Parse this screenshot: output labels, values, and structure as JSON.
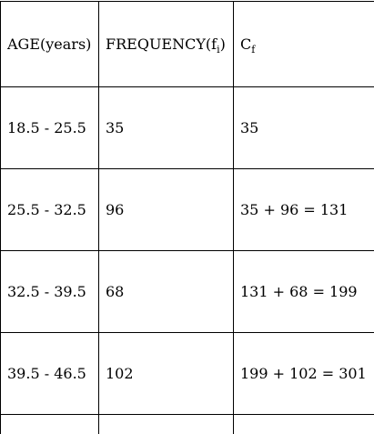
{
  "table": {
    "headers": {
      "age": "AGE(years)",
      "frequency_main": "FREQUENCY(f",
      "frequency_sub": "i",
      "frequency_close": ")",
      "cf_main": "C",
      "cf_sub": "f"
    },
    "rows": [
      {
        "age": "18.5 - 25.5",
        "frequency": "35",
        "cf": "35"
      },
      {
        "age": "25.5 - 32.5",
        "frequency": "96",
        "cf": "35 + 96 = 131"
      },
      {
        "age": "32.5 - 39.5",
        "frequency": "68",
        "cf": "131 + 68 = 199"
      },
      {
        "age": "39.5 - 46.5",
        "frequency": "102",
        "cf": "199 + 102 = 301"
      }
    ]
  }
}
